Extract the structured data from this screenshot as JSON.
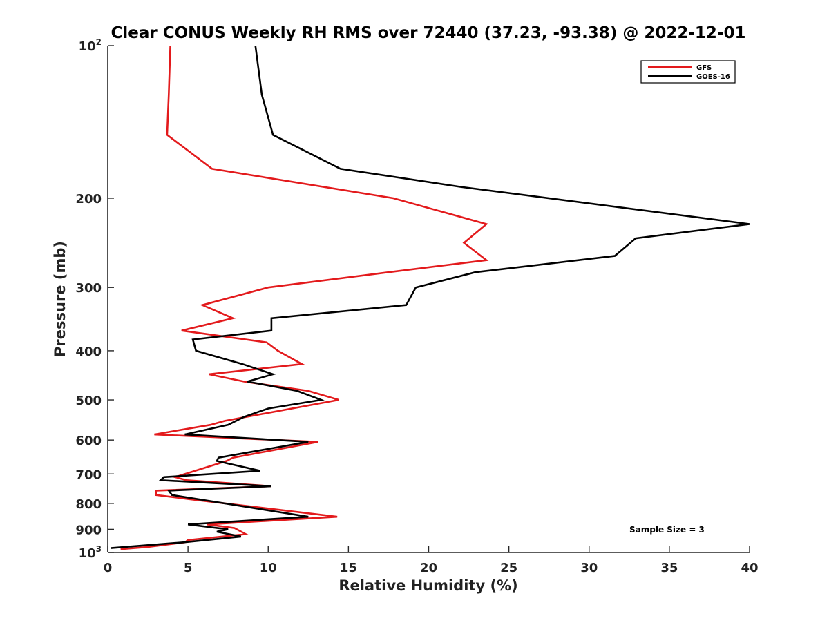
{
  "chart_data": {
    "type": "line",
    "title": "Clear CONUS Weekly RH RMS over 72440 (37.23, -93.38) @ 2022-12-01",
    "xlabel": "Relative Humidity (%)",
    "ylabel": "Pressure (mb)",
    "xlim": [
      0,
      40
    ],
    "ylim": [
      100,
      1000
    ],
    "y_scale": "log",
    "y_reversed": true,
    "grid": false,
    "legend_position": "top-right",
    "annotation": "Sample Size = 3",
    "x_ticks": [
      "0",
      "5",
      "10",
      "15",
      "20",
      "25",
      "30",
      "35",
      "40"
    ],
    "y_ticks": [
      {
        "value": 100,
        "base": "10",
        "exp": "2"
      },
      {
        "value": 200,
        "label": "200"
      },
      {
        "value": 300,
        "label": "300"
      },
      {
        "value": 400,
        "label": "400"
      },
      {
        "value": 500,
        "label": "500"
      },
      {
        "value": 600,
        "label": "600"
      },
      {
        "value": 700,
        "label": "700"
      },
      {
        "value": 800,
        "label": "800"
      },
      {
        "value": 900,
        "label": "900"
      },
      {
        "value": 1000,
        "base": "10",
        "exp": "3"
      }
    ],
    "series": [
      {
        "name": "GFS",
        "color": "#e31a1c",
        "points": [
          [
            3.9,
            100
          ],
          [
            3.8,
            125
          ],
          [
            3.7,
            150
          ],
          [
            6.5,
            175
          ],
          [
            17.8,
            200
          ],
          [
            23.6,
            225
          ],
          [
            22.2,
            245
          ],
          [
            23.6,
            265
          ],
          [
            17.5,
            280
          ],
          [
            10.0,
            300
          ],
          [
            5.9,
            325
          ],
          [
            7.8,
            345
          ],
          [
            4.6,
            365
          ],
          [
            9.9,
            385
          ],
          [
            10.6,
            400
          ],
          [
            12.1,
            425
          ],
          [
            6.3,
            445
          ],
          [
            8.5,
            460
          ],
          [
            12.5,
            480
          ],
          [
            14.4,
            500
          ],
          [
            7.3,
            550
          ],
          [
            6.4,
            560
          ],
          [
            2.9,
            585
          ],
          [
            13.1,
            605
          ],
          [
            7.8,
            650
          ],
          [
            7.4,
            660
          ],
          [
            4.2,
            710
          ],
          [
            4.9,
            720
          ],
          [
            10.2,
            740
          ],
          [
            3.0,
            755
          ],
          [
            3.0,
            770
          ],
          [
            5.1,
            785
          ],
          [
            14.3,
            850
          ],
          [
            6.2,
            880
          ],
          [
            7.9,
            895
          ],
          [
            8.6,
            920
          ],
          [
            5.0,
            945
          ],
          [
            4.8,
            955
          ],
          [
            2.5,
            975
          ],
          [
            0.8,
            985
          ]
        ]
      },
      {
        "name": "GOES-16",
        "color": "#000000",
        "points": [
          [
            9.2,
            100
          ],
          [
            9.6,
            125
          ],
          [
            10.3,
            150
          ],
          [
            14.5,
            175
          ],
          [
            22.0,
            190
          ],
          [
            40.0,
            225
          ],
          [
            32.9,
            240
          ],
          [
            31.6,
            260
          ],
          [
            22.9,
            280
          ],
          [
            19.2,
            300
          ],
          [
            18.6,
            325
          ],
          [
            10.2,
            345
          ],
          [
            10.2,
            365
          ],
          [
            5.3,
            380
          ],
          [
            5.5,
            400
          ],
          [
            8.4,
            425
          ],
          [
            10.3,
            445
          ],
          [
            8.7,
            460
          ],
          [
            11.8,
            480
          ],
          [
            13.3,
            500
          ],
          [
            10.0,
            520
          ],
          [
            8.5,
            540
          ],
          [
            7.5,
            560
          ],
          [
            4.8,
            585
          ],
          [
            12.5,
            605
          ],
          [
            6.9,
            650
          ],
          [
            6.8,
            660
          ],
          [
            9.5,
            690
          ],
          [
            3.5,
            710
          ],
          [
            3.3,
            720
          ],
          [
            10.2,
            740
          ],
          [
            3.8,
            755
          ],
          [
            4.0,
            770
          ],
          [
            12.5,
            850
          ],
          [
            5.0,
            880
          ],
          [
            7.5,
            900
          ],
          [
            6.8,
            910
          ],
          [
            8.3,
            930
          ],
          [
            4.7,
            955
          ],
          [
            0.2,
            980
          ]
        ]
      }
    ]
  }
}
